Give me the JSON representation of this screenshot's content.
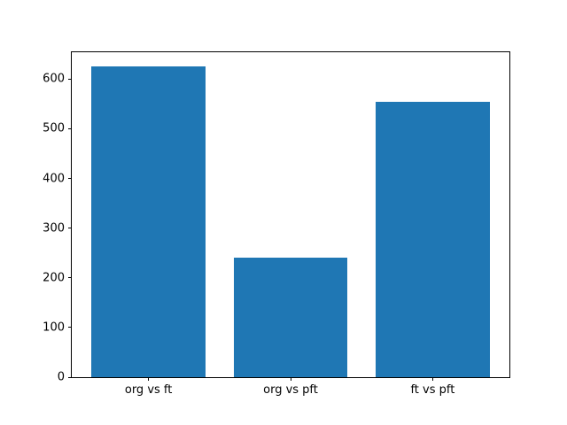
{
  "chart_data": {
    "type": "bar",
    "title": "",
    "xlabel": "",
    "ylabel": "",
    "categories": [
      "org vs ft",
      "org vs pft",
      "ft vs pft"
    ],
    "values": [
      625,
      240,
      554
    ],
    "x_positions": [
      0,
      1,
      2
    ],
    "bar_width_fraction": 0.8,
    "xlim": [
      -0.54,
      2.54
    ],
    "ylim": [
      0,
      654
    ],
    "yticks": [
      0,
      100,
      200,
      300,
      400,
      500,
      600
    ],
    "bar_color": "#1f77b4",
    "axis_color": "#000000",
    "background_color": "#ffffff",
    "grid": false,
    "legend": "none"
  }
}
